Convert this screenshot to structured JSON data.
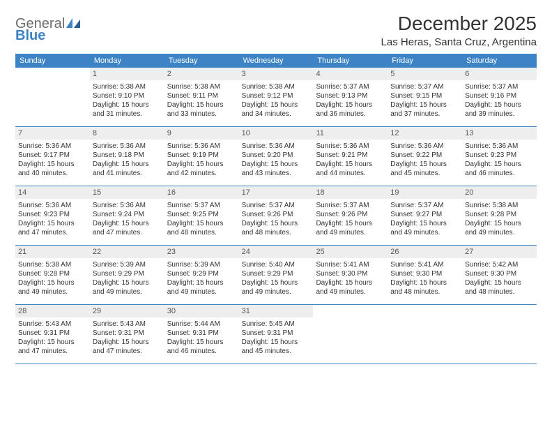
{
  "logo": {
    "text1": "General",
    "text2": "Blue",
    "color1": "#6b6b6b",
    "color2": "#3d84c6"
  },
  "title": "December 2025",
  "location": "Las Heras, Santa Cruz, Argentina",
  "header_bg": "#3d84c6",
  "header_fg": "#ffffff",
  "daynum_bg": "#eeeeee",
  "border_color": "#3d84c6",
  "font_family": "Arial, Helvetica, sans-serif",
  "title_fontsize": 28,
  "location_fontsize": 15,
  "weekday_fontsize": 11,
  "cell_fontsize": 10,
  "weekdays": [
    "Sunday",
    "Monday",
    "Tuesday",
    "Wednesday",
    "Thursday",
    "Friday",
    "Saturday"
  ],
  "weeks": [
    [
      {
        "n": "",
        "sr": "",
        "ss": "",
        "dl": ""
      },
      {
        "n": "1",
        "sr": "Sunrise: 5:38 AM",
        "ss": "Sunset: 9:10 PM",
        "dl": "Daylight: 15 hours and 31 minutes."
      },
      {
        "n": "2",
        "sr": "Sunrise: 5:38 AM",
        "ss": "Sunset: 9:11 PM",
        "dl": "Daylight: 15 hours and 33 minutes."
      },
      {
        "n": "3",
        "sr": "Sunrise: 5:38 AM",
        "ss": "Sunset: 9:12 PM",
        "dl": "Daylight: 15 hours and 34 minutes."
      },
      {
        "n": "4",
        "sr": "Sunrise: 5:37 AM",
        "ss": "Sunset: 9:13 PM",
        "dl": "Daylight: 15 hours and 36 minutes."
      },
      {
        "n": "5",
        "sr": "Sunrise: 5:37 AM",
        "ss": "Sunset: 9:15 PM",
        "dl": "Daylight: 15 hours and 37 minutes."
      },
      {
        "n": "6",
        "sr": "Sunrise: 5:37 AM",
        "ss": "Sunset: 9:16 PM",
        "dl": "Daylight: 15 hours and 39 minutes."
      }
    ],
    [
      {
        "n": "7",
        "sr": "Sunrise: 5:36 AM",
        "ss": "Sunset: 9:17 PM",
        "dl": "Daylight: 15 hours and 40 minutes."
      },
      {
        "n": "8",
        "sr": "Sunrise: 5:36 AM",
        "ss": "Sunset: 9:18 PM",
        "dl": "Daylight: 15 hours and 41 minutes."
      },
      {
        "n": "9",
        "sr": "Sunrise: 5:36 AM",
        "ss": "Sunset: 9:19 PM",
        "dl": "Daylight: 15 hours and 42 minutes."
      },
      {
        "n": "10",
        "sr": "Sunrise: 5:36 AM",
        "ss": "Sunset: 9:20 PM",
        "dl": "Daylight: 15 hours and 43 minutes."
      },
      {
        "n": "11",
        "sr": "Sunrise: 5:36 AM",
        "ss": "Sunset: 9:21 PM",
        "dl": "Daylight: 15 hours and 44 minutes."
      },
      {
        "n": "12",
        "sr": "Sunrise: 5:36 AM",
        "ss": "Sunset: 9:22 PM",
        "dl": "Daylight: 15 hours and 45 minutes."
      },
      {
        "n": "13",
        "sr": "Sunrise: 5:36 AM",
        "ss": "Sunset: 9:23 PM",
        "dl": "Daylight: 15 hours and 46 minutes."
      }
    ],
    [
      {
        "n": "14",
        "sr": "Sunrise: 5:36 AM",
        "ss": "Sunset: 9:23 PM",
        "dl": "Daylight: 15 hours and 47 minutes."
      },
      {
        "n": "15",
        "sr": "Sunrise: 5:36 AM",
        "ss": "Sunset: 9:24 PM",
        "dl": "Daylight: 15 hours and 47 minutes."
      },
      {
        "n": "16",
        "sr": "Sunrise: 5:37 AM",
        "ss": "Sunset: 9:25 PM",
        "dl": "Daylight: 15 hours and 48 minutes."
      },
      {
        "n": "17",
        "sr": "Sunrise: 5:37 AM",
        "ss": "Sunset: 9:26 PM",
        "dl": "Daylight: 15 hours and 48 minutes."
      },
      {
        "n": "18",
        "sr": "Sunrise: 5:37 AM",
        "ss": "Sunset: 9:26 PM",
        "dl": "Daylight: 15 hours and 49 minutes."
      },
      {
        "n": "19",
        "sr": "Sunrise: 5:37 AM",
        "ss": "Sunset: 9:27 PM",
        "dl": "Daylight: 15 hours and 49 minutes."
      },
      {
        "n": "20",
        "sr": "Sunrise: 5:38 AM",
        "ss": "Sunset: 9:28 PM",
        "dl": "Daylight: 15 hours and 49 minutes."
      }
    ],
    [
      {
        "n": "21",
        "sr": "Sunrise: 5:38 AM",
        "ss": "Sunset: 9:28 PM",
        "dl": "Daylight: 15 hours and 49 minutes."
      },
      {
        "n": "22",
        "sr": "Sunrise: 5:39 AM",
        "ss": "Sunset: 9:29 PM",
        "dl": "Daylight: 15 hours and 49 minutes."
      },
      {
        "n": "23",
        "sr": "Sunrise: 5:39 AM",
        "ss": "Sunset: 9:29 PM",
        "dl": "Daylight: 15 hours and 49 minutes."
      },
      {
        "n": "24",
        "sr": "Sunrise: 5:40 AM",
        "ss": "Sunset: 9:29 PM",
        "dl": "Daylight: 15 hours and 49 minutes."
      },
      {
        "n": "25",
        "sr": "Sunrise: 5:41 AM",
        "ss": "Sunset: 9:30 PM",
        "dl": "Daylight: 15 hours and 49 minutes."
      },
      {
        "n": "26",
        "sr": "Sunrise: 5:41 AM",
        "ss": "Sunset: 9:30 PM",
        "dl": "Daylight: 15 hours and 48 minutes."
      },
      {
        "n": "27",
        "sr": "Sunrise: 5:42 AM",
        "ss": "Sunset: 9:30 PM",
        "dl": "Daylight: 15 hours and 48 minutes."
      }
    ],
    [
      {
        "n": "28",
        "sr": "Sunrise: 5:43 AM",
        "ss": "Sunset: 9:31 PM",
        "dl": "Daylight: 15 hours and 47 minutes."
      },
      {
        "n": "29",
        "sr": "Sunrise: 5:43 AM",
        "ss": "Sunset: 9:31 PM",
        "dl": "Daylight: 15 hours and 47 minutes."
      },
      {
        "n": "30",
        "sr": "Sunrise: 5:44 AM",
        "ss": "Sunset: 9:31 PM",
        "dl": "Daylight: 15 hours and 46 minutes."
      },
      {
        "n": "31",
        "sr": "Sunrise: 5:45 AM",
        "ss": "Sunset: 9:31 PM",
        "dl": "Daylight: 15 hours and 45 minutes."
      },
      {
        "n": "",
        "sr": "",
        "ss": "",
        "dl": ""
      },
      {
        "n": "",
        "sr": "",
        "ss": "",
        "dl": ""
      },
      {
        "n": "",
        "sr": "",
        "ss": "",
        "dl": ""
      }
    ]
  ]
}
